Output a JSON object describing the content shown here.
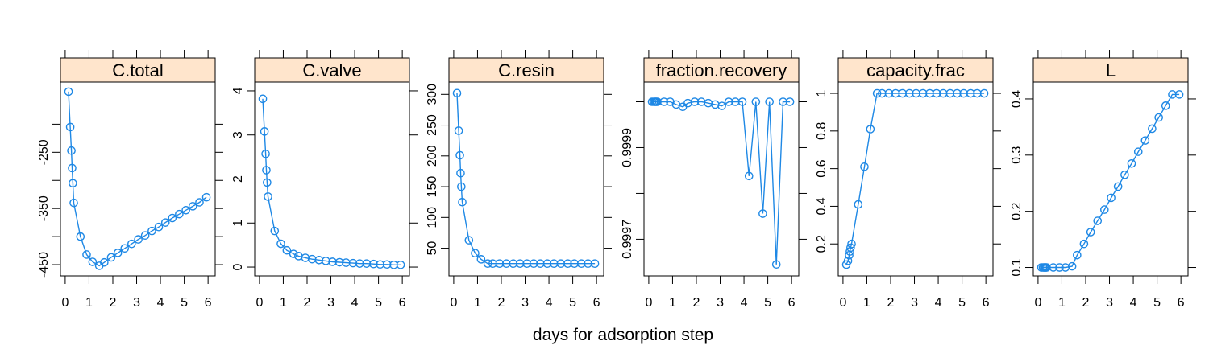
{
  "chart_data": {
    "type": "line",
    "xlabel": "days for adsorption step",
    "color": "#1e88e5",
    "x": [
      0.14,
      0.21,
      0.26,
      0.29,
      0.32,
      0.36,
      0.64,
      0.9,
      1.15,
      1.43,
      1.64,
      1.93,
      2.21,
      2.5,
      2.79,
      3.07,
      3.36,
      3.64,
      3.93,
      4.21,
      4.5,
      4.79,
      5.07,
      5.36,
      5.64,
      5.93
    ],
    "xlim": [
      -0.2,
      6.3
    ],
    "xticks": [
      0,
      1,
      2,
      3,
      4,
      5,
      6
    ],
    "panels": [
      {
        "strip": "C.total",
        "ylim": [
          -470,
          -125
        ],
        "yticks": [
          -250,
          -350,
          -450
        ],
        "yticks_minor": [
          -200,
          -300,
          -400
        ],
        "y": [
          -142,
          -205,
          -247,
          -278,
          -305,
          -340,
          -400,
          -432,
          -445,
          -452,
          -446,
          -437,
          -429,
          -421,
          -413,
          -405,
          -398,
          -390,
          -383,
          -375,
          -367,
          -360,
          -353,
          -346,
          -339,
          -330
        ]
      },
      {
        "strip": "C.valve",
        "ylim": [
          -0.2,
          4.2
        ],
        "yticks": [
          0,
          1,
          2,
          3,
          4
        ],
        "y": [
          3.82,
          3.08,
          2.57,
          2.2,
          1.92,
          1.6,
          0.82,
          0.53,
          0.38,
          0.3,
          0.25,
          0.21,
          0.18,
          0.16,
          0.14,
          0.12,
          0.11,
          0.1,
          0.09,
          0.08,
          0.08,
          0.07,
          0.06,
          0.06,
          0.05,
          0.05
        ]
      },
      {
        "strip": "C.resin",
        "ylim": [
          5,
          320
        ],
        "yticks": [
          50,
          100,
          150,
          200,
          250,
          300
        ],
        "y": [
          302,
          241,
          201,
          172,
          150,
          125,
          63,
          42,
          32,
          25,
          25,
          25,
          25,
          25,
          25,
          25,
          25,
          25,
          25,
          25,
          25,
          25,
          25,
          25,
          25,
          25
        ]
      },
      {
        "strip": "fraction.recovery",
        "ylim": [
          0.99962,
          1.000043
        ],
        "yticks": [
          0.9997,
          0.9999
        ],
        "yticks_minor": [
          0.9996,
          0.9998,
          1.0
        ],
        "y": [
          1.0,
          1.0,
          1.0,
          1.0,
          1.0,
          1.0,
          1.0,
          1.0,
          0.999994,
          0.999989,
          0.999997,
          1.0,
          1.0,
          0.999997,
          0.999994,
          0.999991,
          1.0,
          1.0,
          1.0,
          0.999838,
          1.0,
          0.999756,
          1.0,
          0.999645,
          1.0,
          1.0
        ]
      },
      {
        "strip": "capacity.frac",
        "ylim": [
          0.03,
          1.06
        ],
        "yticks": [
          0.2,
          0.4,
          0.6,
          0.8,
          1.0
        ],
        "y": [
          0.09,
          0.11,
          0.14,
          0.16,
          0.18,
          0.2,
          0.41,
          0.61,
          0.81,
          1.0,
          1.0,
          1.0,
          1.0,
          1.0,
          1.0,
          1.0,
          1.0,
          1.0,
          1.0,
          1.0,
          1.0,
          1.0,
          1.0,
          1.0,
          1.0,
          1.0
        ]
      },
      {
        "strip": "L",
        "ylim": [
          0.085,
          0.43
        ],
        "yticks": [
          0.1,
          0.2,
          0.3,
          0.4
        ],
        "y": [
          0.1,
          0.1,
          0.1,
          0.1,
          0.1,
          0.1,
          0.1,
          0.1,
          0.1,
          0.102,
          0.122,
          0.142,
          0.163,
          0.183,
          0.203,
          0.224,
          0.244,
          0.265,
          0.285,
          0.306,
          0.326,
          0.347,
          0.367,
          0.388,
          0.408,
          0.408
        ]
      }
    ]
  }
}
